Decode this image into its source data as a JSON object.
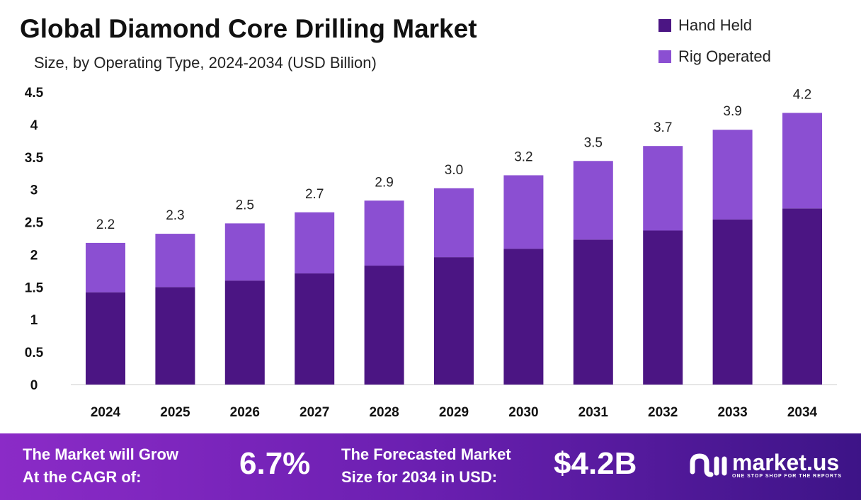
{
  "chart_data": {
    "type": "bar",
    "stacked": true,
    "title": "Global Diamond Core Drilling Market",
    "subtitle": "Size, by Operating Type, 2024-2034 (USD Billion)",
    "categories": [
      "2024",
      "2025",
      "2026",
      "2027",
      "2028",
      "2029",
      "2030",
      "2031",
      "2032",
      "2033",
      "2034"
    ],
    "series": [
      {
        "name": "Hand Held",
        "color": "#4b1583",
        "values": [
          1.42,
          1.5,
          1.6,
          1.71,
          1.83,
          1.96,
          2.09,
          2.23,
          2.37,
          2.54,
          2.71
        ]
      },
      {
        "name": "Rig Operated",
        "color": "#8b4fd2",
        "values": [
          0.76,
          0.82,
          0.88,
          0.94,
          1.0,
          1.06,
          1.13,
          1.21,
          1.3,
          1.38,
          1.47
        ]
      }
    ],
    "totals_labels": [
      "2.2",
      "2.3",
      "2.5",
      "2.7",
      "2.9",
      "3.0",
      "3.2",
      "3.5",
      "3.7",
      "3.9",
      "4.2"
    ],
    "yticks": [
      "0",
      "0.5",
      "1",
      "1.5",
      "2",
      "2.5",
      "3",
      "3.5",
      "4",
      "4.5"
    ],
    "ylim": [
      0,
      4.5
    ],
    "grid": false,
    "legend_position": "top-right"
  },
  "footer": {
    "cagr_label_line1": "The Market will Grow",
    "cagr_label_line2": "At the CAGR of:",
    "cagr_value": "6.7%",
    "forecast_label_line1": "The Forecasted Market",
    "forecast_label_line2": "Size for 2034 in USD:",
    "forecast_value": "$4.2B",
    "brand": "market.us",
    "tagline": "ONE STOP SHOP FOR THE REPORTS"
  }
}
